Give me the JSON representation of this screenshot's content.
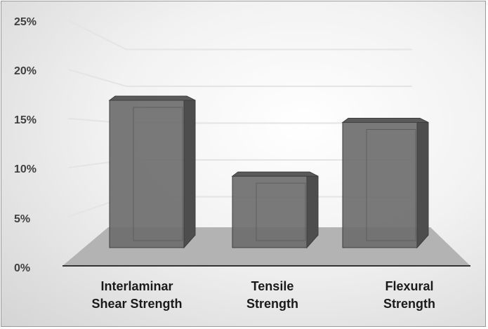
{
  "chart_data": {
    "type": "bar",
    "title": "",
    "xlabel": "",
    "ylabel": "",
    "categories": [
      [
        "Interlaminar",
        "Shear Strength"
      ],
      [
        "Tensile",
        "Strength"
      ],
      [
        "Flexural",
        "Strength"
      ]
    ],
    "values": [
      0.2,
      0.097,
      0.17
    ],
    "ylim": [
      0,
      0.25
    ],
    "y_ticks": [
      "0%",
      "5%",
      "10%",
      "15%",
      "20%",
      "25%"
    ],
    "y_tick_values": [
      0,
      0.05,
      0.1,
      0.15,
      0.2,
      0.25
    ],
    "grid": true,
    "style": "3d-column",
    "colors": {
      "bar_front": "#6e6e6e",
      "bar_side": "#4d4d4d",
      "bar_top": "#5a5a5a",
      "floor": "#b3b3b3",
      "gridline": "#e4e4e4",
      "axis": "#333333"
    }
  }
}
